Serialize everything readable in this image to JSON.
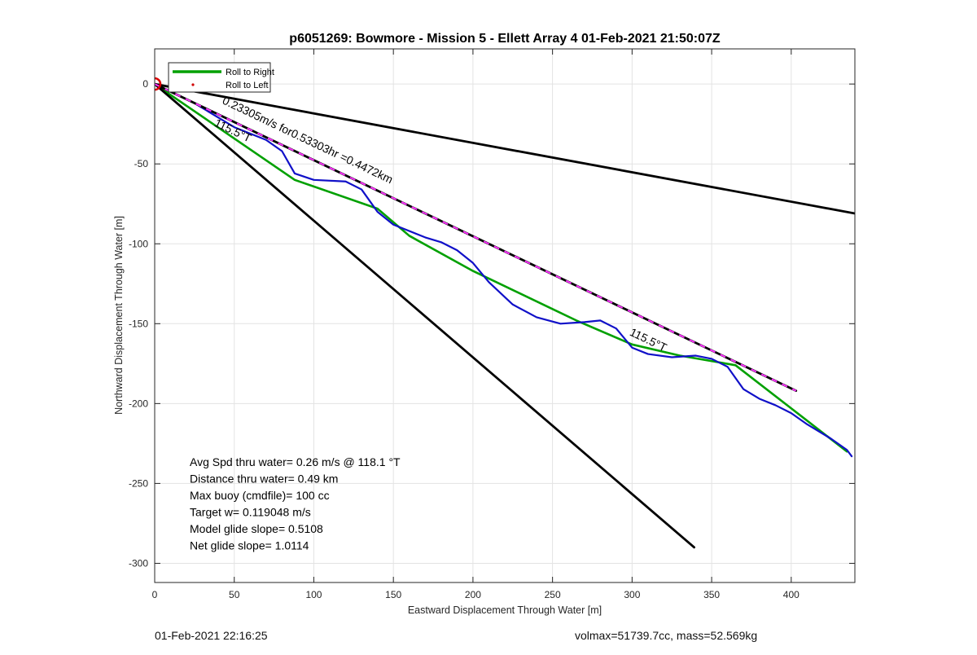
{
  "chart_data": {
    "type": "line",
    "title": "p6051269: Bowmore - Mission 5 - Ellett Array 4 01-Feb-2021 21:50:07Z",
    "xlabel": "Eastward Displacement Through Water [m]",
    "ylabel": "Northward Displacement Through Water [m]",
    "xlim": [
      0,
      440
    ],
    "ylim": [
      -312,
      22
    ],
    "xticks": [
      0,
      50,
      100,
      150,
      200,
      250,
      300,
      350,
      400
    ],
    "yticks": [
      0,
      -50,
      -100,
      -150,
      -200,
      -250,
      -300
    ],
    "grid": true,
    "legend": {
      "location": "top-left",
      "entries": [
        {
          "label": "Roll to Right",
          "color": "#00a000",
          "style": "line"
        },
        {
          "label": "Roll to Left",
          "color": "#d00000",
          "style": "marker"
        }
      ]
    },
    "series": [
      {
        "name": "Roll to Right",
        "color": "#00a000",
        "x": [
          0,
          88,
          140,
          160,
          200,
          265,
          300,
          330,
          365,
          400,
          435
        ],
        "y": [
          0,
          -60,
          -78,
          -95,
          -117,
          -148,
          -163,
          -170,
          -176,
          -203,
          -230
        ]
      },
      {
        "color": "#1010c8",
        "x": [
          0,
          25,
          50,
          70,
          80,
          88,
          100,
          120,
          130,
          140,
          150,
          170,
          180,
          190,
          200,
          210,
          225,
          240,
          255,
          270,
          280,
          290,
          300,
          310,
          325,
          340,
          350,
          360,
          370,
          380,
          390,
          400,
          410,
          425,
          435,
          438
        ],
        "y": [
          0,
          -12,
          -27,
          -35,
          -42,
          -56,
          -60,
          -61,
          -66,
          -80,
          -88,
          -96,
          -99,
          -104,
          -112,
          -124,
          -138,
          -146,
          -150,
          -149,
          -148,
          -153,
          -165,
          -169,
          -171,
          -170,
          -172,
          -177,
          -191,
          -197,
          -201,
          -206,
          -213,
          -222,
          -229,
          -233
        ]
      },
      {
        "color": "#000000",
        "x": [
          0,
          440
        ],
        "y": [
          0,
          -81
        ]
      },
      {
        "color": "#000000",
        "x": [
          0,
          339
        ],
        "y": [
          0,
          -290
        ]
      },
      {
        "color": "#000000",
        "dash_color": "#ff33ff",
        "x": [
          0,
          403
        ],
        "y": [
          0,
          -192
        ]
      }
    ],
    "start_marker": {
      "x": 0,
      "y": 0,
      "color": "#dd0000"
    },
    "annotations": [
      {
        "text": "0.23305m/s for0.53303hr =0.4472km",
        "x": 42,
        "y": -12,
        "rotate": 25.5,
        "size": 14
      },
      {
        "text": "115.5°T",
        "x": 37,
        "y": -26,
        "rotate": 25.5,
        "size": 14
      },
      {
        "text": "115.5°T",
        "x": 298,
        "y": -157,
        "rotate": 25.5,
        "size": 14
      }
    ],
    "stats": [
      "Avg Spd thru water=  0.26 m/s @ 118.1 °T",
      "Distance thru water=  0.49 km",
      "Max buoy (cmdfile)= 100 cc",
      "Target w= 0.119048 m/s",
      "Model glide slope= 0.5108",
      "Net glide slope= 1.0114"
    ]
  },
  "footer": {
    "left": "01-Feb-2021 22:16:25",
    "right": "volmax=51739.7cc, mass=52.569kg"
  }
}
